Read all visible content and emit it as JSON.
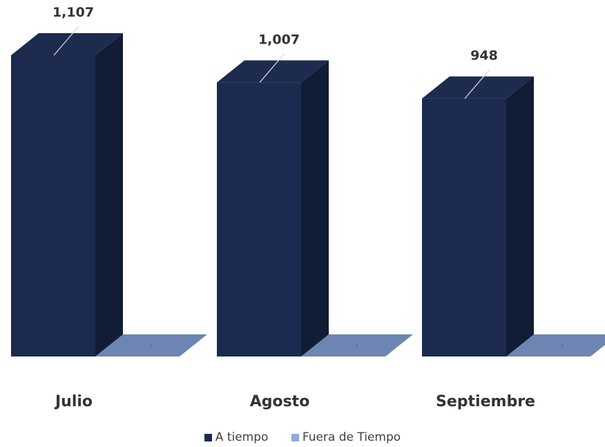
{
  "chart_data": {
    "type": "bar",
    "categories": [
      "Julio",
      "Agosto",
      "Septiembre"
    ],
    "series": [
      {
        "name": "A tiempo",
        "values": [
          1107,
          1007,
          948
        ],
        "labels": [
          "1,107",
          "1,007",
          "948"
        ],
        "color": "#1b2a4e"
      },
      {
        "name": "Fuera de Tiempo",
        "values": [
          0,
          0,
          0
        ],
        "labels": [
          "-",
          "-",
          "-"
        ],
        "color": "#8faadc"
      }
    ],
    "ylim": [
      0,
      1107
    ],
    "grid": false,
    "legend_position": "bottom",
    "title": "",
    "xlabel": "",
    "ylabel": ""
  }
}
